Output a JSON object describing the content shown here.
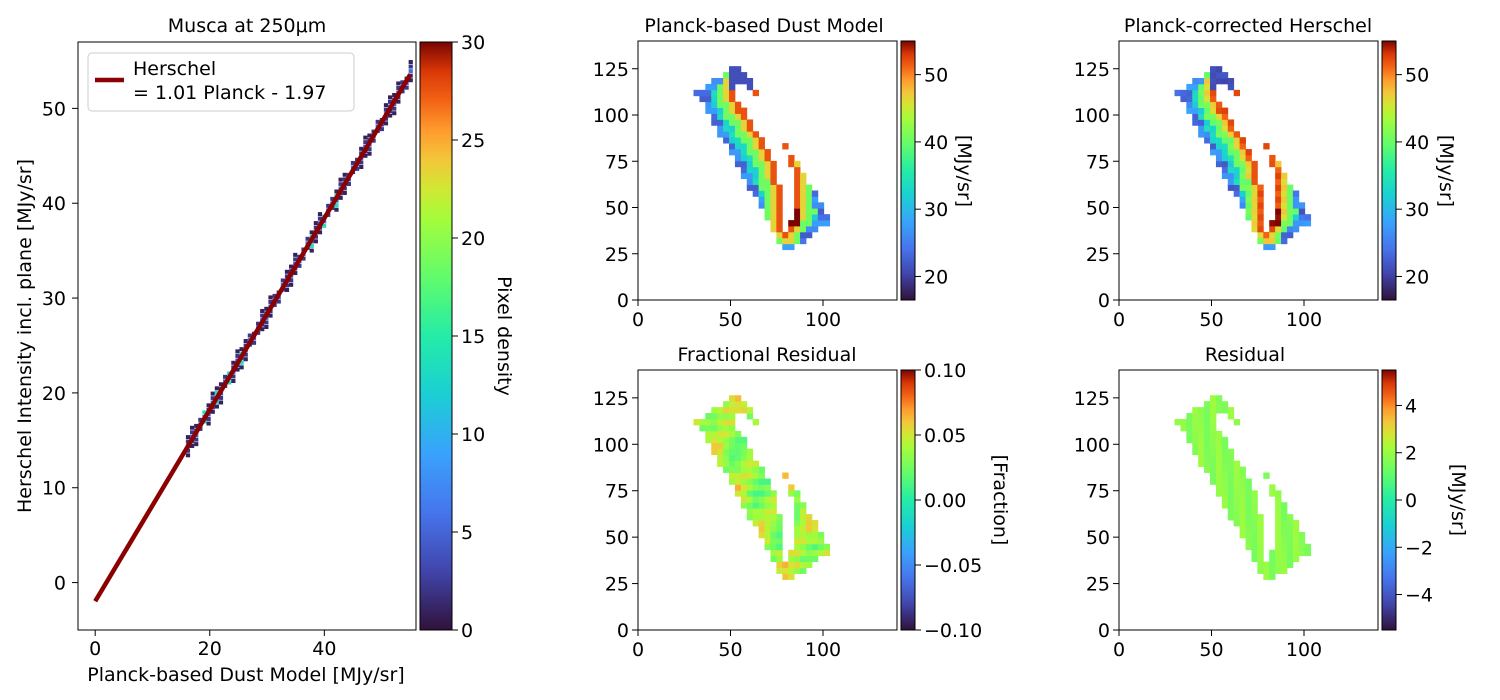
{
  "chart_data": [
    {
      "type": "heatmap",
      "title": "Musca at 250μm",
      "xlabel": "Planck-based Dust Model [MJy/sr]",
      "ylabel": "Herschel Intensity incl. plane [MJy/sr]",
      "xlim": [
        -3,
        56
      ],
      "ylim": [
        -5,
        57
      ],
      "xticks": [
        "0",
        "20",
        "40"
      ],
      "yticks": [
        "0",
        "10",
        "20",
        "30",
        "40",
        "50"
      ],
      "colorbar": {
        "label": "Pixel density",
        "range": [
          0,
          30
        ],
        "ticks": [
          "0",
          "5",
          "10",
          "15",
          "20",
          "25",
          "30"
        ],
        "colormap": "turbo"
      },
      "fit": {
        "slope": 1.01,
        "intercept": -1.97,
        "x_range": [
          0,
          55
        ],
        "color": "#8b0000"
      },
      "legend": {
        "line1": "Herschel",
        "line2": "= 1.01 Planck - 1.97",
        "placement": "top-left"
      },
      "density_points": [
        [
          16,
          15.6
        ],
        [
          20,
          18.7
        ],
        [
          24,
          22.4
        ],
        [
          28,
          26.5
        ],
        [
          32,
          30.9
        ],
        [
          36,
          34.8
        ],
        [
          40,
          38.7
        ],
        [
          44,
          42.4
        ],
        [
          48,
          46.1
        ],
        [
          52,
          50.3
        ],
        [
          54,
          52.6
        ]
      ]
    },
    {
      "type": "heatmap",
      "title": "Planck-based Dust Model",
      "xticks": [
        "0",
        "50",
        "100"
      ],
      "yticks": [
        "0",
        "25",
        "50",
        "75",
        "100",
        "125"
      ],
      "xlim": [
        0,
        140
      ],
      "ylim": [
        0,
        140
      ],
      "colorbar": {
        "label": "[MJy/sr]",
        "range": [
          16.5,
          55
        ],
        "ticks": [
          "20",
          "30",
          "40",
          "50"
        ],
        "colormap": "turbo"
      }
    },
    {
      "type": "heatmap",
      "title": "Planck-corrected Herschel",
      "xticks": [
        "0",
        "50",
        "100"
      ],
      "yticks": [
        "0",
        "25",
        "50",
        "75",
        "100",
        "125"
      ],
      "xlim": [
        0,
        140
      ],
      "ylim": [
        0,
        140
      ],
      "colorbar": {
        "label": "[MJy/sr]",
        "range": [
          16.5,
          55
        ],
        "ticks": [
          "20",
          "30",
          "40",
          "50"
        ],
        "colormap": "turbo"
      }
    },
    {
      "type": "heatmap",
      "title": "Fractional Residual",
      "xticks": [
        "0",
        "50",
        "100"
      ],
      "yticks": [
        "0",
        "25",
        "50",
        "75",
        "100",
        "125"
      ],
      "xlim": [
        0,
        140
      ],
      "ylim": [
        0,
        140
      ],
      "colorbar": {
        "label": "[Fraction]",
        "range": [
          -0.1,
          0.1
        ],
        "ticks": [
          "−0.10",
          "−0.05",
          "0.00",
          "0.05",
          "0.10"
        ],
        "colormap": "turbo"
      }
    },
    {
      "type": "heatmap",
      "title": "Residual",
      "xticks": [
        "0",
        "50",
        "100"
      ],
      "yticks": [
        "0",
        "25",
        "50",
        "75",
        "100",
        "125"
      ],
      "xlim": [
        0,
        140
      ],
      "ylim": [
        0,
        140
      ],
      "colorbar": {
        "label": "[MJy/sr]",
        "range": [
          -5.5,
          5.5
        ],
        "ticks": [
          "−4",
          "−2",
          "0",
          "2",
          "4"
        ],
        "colormap": "turbo"
      }
    }
  ]
}
